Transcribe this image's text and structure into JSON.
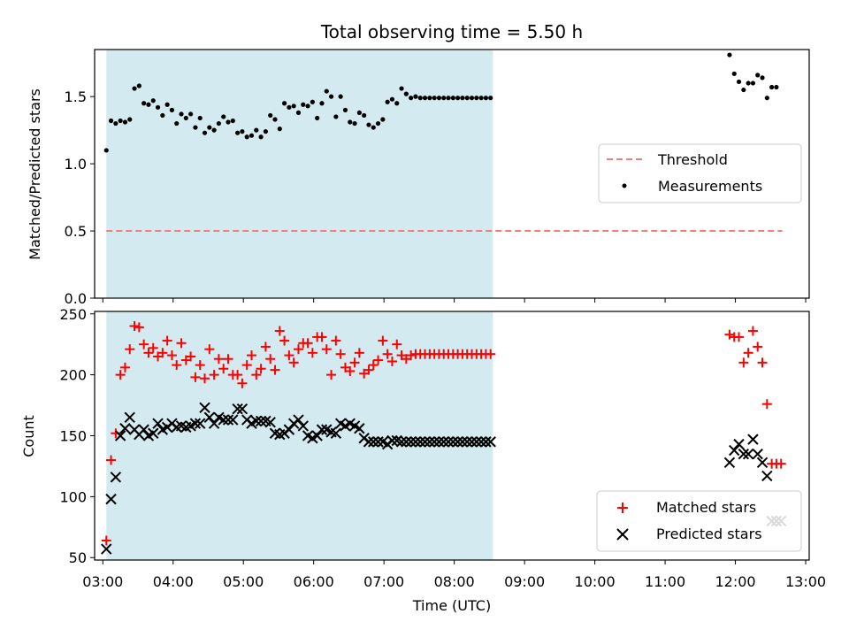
{
  "chart_data": [
    {
      "type": "scatter",
      "title": "Total observing time = 5.50 h",
      "ylabel": "Matched/Predicted stars",
      "xlabel": "",
      "xlim": [
        "02:53",
        "13:03"
      ],
      "ylim": [
        0,
        1.85
      ],
      "yticks": [
        "0.0",
        "0.5",
        "1.0",
        "1.5"
      ],
      "shaded_interval": [
        "03:03",
        "08:33"
      ],
      "shade_color": "#d4eaf1",
      "legend_position": "center-right",
      "series": [
        {
          "name": "Threshold",
          "style": "dashed-line",
          "color": "#f08080",
          "x": [
            "03:03",
            "12:40"
          ],
          "y": [
            0.5,
            0.5
          ]
        },
        {
          "name": "Measurements",
          "style": "dot",
          "color": "#000000",
          "x": [
            "03:03",
            "03:07",
            "03:11",
            "03:15",
            "03:19",
            "03:23",
            "03:27",
            "03:31",
            "03:35",
            "03:39",
            "03:43",
            "03:47",
            "03:51",
            "03:55",
            "03:59",
            "04:03",
            "04:07",
            "04:11",
            "04:15",
            "04:19",
            "04:23",
            "04:27",
            "04:31",
            "04:35",
            "04:39",
            "04:43",
            "04:47",
            "04:51",
            "04:55",
            "04:59",
            "05:03",
            "05:07",
            "05:11",
            "05:15",
            "05:19",
            "05:23",
            "05:27",
            "05:31",
            "05:35",
            "05:39",
            "05:43",
            "05:47",
            "05:51",
            "05:55",
            "05:59",
            "06:03",
            "06:07",
            "06:11",
            "06:15",
            "06:19",
            "06:23",
            "06:27",
            "06:31",
            "06:35",
            "06:39",
            "06:43",
            "06:47",
            "06:51",
            "06:55",
            "06:59",
            "07:03",
            "07:07",
            "07:11",
            "07:15",
            "07:19",
            "07:23",
            "07:27",
            "07:31",
            "07:35",
            "07:39",
            "07:43",
            "07:47",
            "07:51",
            "07:55",
            "07:59",
            "08:03",
            "08:07",
            "08:11",
            "08:15",
            "08:19",
            "08:23",
            "08:27",
            "08:31",
            "11:55",
            "11:59",
            "12:03",
            "12:07",
            "12:11",
            "12:15",
            "12:19",
            "12:23",
            "12:27",
            "12:31",
            "12:35"
          ],
          "y": [
            1.1,
            1.32,
            1.3,
            1.32,
            1.31,
            1.33,
            1.56,
            1.58,
            1.45,
            1.44,
            1.47,
            1.42,
            1.36,
            1.44,
            1.4,
            1.3,
            1.37,
            1.34,
            1.37,
            1.27,
            1.34,
            1.23,
            1.27,
            1.25,
            1.3,
            1.35,
            1.31,
            1.32,
            1.23,
            1.24,
            1.2,
            1.21,
            1.25,
            1.2,
            1.24,
            1.36,
            1.33,
            1.26,
            1.45,
            1.42,
            1.43,
            1.38,
            1.44,
            1.43,
            1.46,
            1.34,
            1.45,
            1.54,
            1.5,
            1.35,
            1.5,
            1.4,
            1.31,
            1.3,
            1.38,
            1.36,
            1.29,
            1.27,
            1.3,
            1.33,
            1.46,
            1.48,
            1.45,
            1.56,
            1.52,
            1.49,
            1.5,
            1.49,
            1.49,
            1.49,
            1.49,
            1.49,
            1.49,
            1.49,
            1.49,
            1.49,
            1.49,
            1.49,
            1.49,
            1.49,
            1.49,
            1.49,
            1.49,
            1.81,
            1.67,
            1.61,
            1.55,
            1.6,
            1.6,
            1.66,
            1.64,
            1.49,
            1.57,
            1.57
          ]
        }
      ]
    },
    {
      "type": "scatter",
      "title": "",
      "xlabel": "Time (UTC)",
      "ylabel": "Count",
      "xlim": [
        "02:53",
        "13:03"
      ],
      "ylim": [
        48,
        252
      ],
      "yticks": [
        "50",
        "100",
        "150",
        "200",
        "250"
      ],
      "xticks": [
        "03:00",
        "04:00",
        "05:00",
        "06:00",
        "07:00",
        "08:00",
        "09:00",
        "10:00",
        "11:00",
        "12:00",
        "13:00"
      ],
      "shaded_interval": [
        "03:03",
        "08:33"
      ],
      "shade_color": "#d4eaf1",
      "legend_position": "bottom-right",
      "series": [
        {
          "name": "Matched stars",
          "style": "plus",
          "color": "#ff0000",
          "x": [
            "03:03",
            "03:07",
            "03:11",
            "03:15",
            "03:19",
            "03:23",
            "03:27",
            "03:31",
            "03:35",
            "03:39",
            "03:43",
            "03:47",
            "03:51",
            "03:55",
            "03:59",
            "04:03",
            "04:07",
            "04:11",
            "04:15",
            "04:19",
            "04:23",
            "04:27",
            "04:31",
            "04:35",
            "04:39",
            "04:43",
            "04:47",
            "04:51",
            "04:55",
            "04:59",
            "05:03",
            "05:07",
            "05:11",
            "05:15",
            "05:19",
            "05:23",
            "05:27",
            "05:31",
            "05:35",
            "05:39",
            "05:43",
            "05:47",
            "05:51",
            "05:55",
            "05:59",
            "06:03",
            "06:07",
            "06:11",
            "06:15",
            "06:19",
            "06:23",
            "06:27",
            "06:31",
            "06:35",
            "06:39",
            "06:43",
            "06:47",
            "06:51",
            "06:55",
            "06:59",
            "07:03",
            "07:07",
            "07:11",
            "07:15",
            "07:19",
            "07:23",
            "07:27",
            "07:31",
            "07:35",
            "07:39",
            "07:43",
            "07:47",
            "07:51",
            "07:55",
            "07:59",
            "08:03",
            "08:07",
            "08:11",
            "08:15",
            "08:19",
            "08:23",
            "08:27",
            "08:31",
            "11:55",
            "11:59",
            "12:03",
            "12:07",
            "12:11",
            "12:15",
            "12:19",
            "12:23",
            "12:27",
            "12:31",
            "12:35",
            "12:39"
          ],
          "y": [
            64,
            130,
            152,
            200,
            206,
            221,
            240,
            239,
            225,
            218,
            222,
            215,
            218,
            228,
            216,
            208,
            226,
            212,
            215,
            198,
            208,
            197,
            221,
            200,
            213,
            205,
            213,
            200,
            200,
            193,
            208,
            216,
            200,
            205,
            223,
            213,
            204,
            236,
            228,
            216,
            210,
            221,
            226,
            226,
            218,
            231,
            231,
            221,
            200,
            228,
            217,
            206,
            203,
            210,
            218,
            201,
            204,
            208,
            212,
            228,
            217,
            211,
            225,
            216,
            213,
            216,
            217,
            217,
            217,
            217,
            217,
            217,
            217,
            217,
            217,
            217,
            217,
            217,
            217,
            217,
            217,
            217,
            217,
            233,
            231,
            231,
            210,
            218,
            236,
            223,
            210,
            176,
            127,
            127,
            127
          ]
        },
        {
          "name": "Predicted stars",
          "style": "x",
          "color": "#000000",
          "x": [
            "03:03",
            "03:07",
            "03:11",
            "03:15",
            "03:19",
            "03:23",
            "03:27",
            "03:31",
            "03:35",
            "03:39",
            "03:43",
            "03:47",
            "03:51",
            "03:55",
            "03:59",
            "04:03",
            "04:07",
            "04:11",
            "04:15",
            "04:19",
            "04:23",
            "04:27",
            "04:31",
            "04:35",
            "04:39",
            "04:43",
            "04:47",
            "04:51",
            "04:55",
            "04:59",
            "05:03",
            "05:07",
            "05:11",
            "05:15",
            "05:19",
            "05:23",
            "05:27",
            "05:31",
            "05:35",
            "05:39",
            "05:43",
            "05:47",
            "05:51",
            "05:55",
            "05:59",
            "06:03",
            "06:07",
            "06:11",
            "06:15",
            "06:19",
            "06:23",
            "06:27",
            "06:31",
            "06:35",
            "06:39",
            "06:43",
            "06:47",
            "06:51",
            "06:55",
            "06:59",
            "07:03",
            "07:07",
            "07:11",
            "07:15",
            "07:19",
            "07:23",
            "07:27",
            "07:31",
            "07:35",
            "07:39",
            "07:43",
            "07:47",
            "07:51",
            "07:55",
            "07:59",
            "08:03",
            "08:07",
            "08:11",
            "08:15",
            "08:19",
            "08:23",
            "08:27",
            "08:31",
            "11:55",
            "11:59",
            "12:03",
            "12:07",
            "12:11",
            "12:15",
            "12:19",
            "12:23",
            "12:27",
            "12:31",
            "12:35",
            "12:39"
          ],
          "y": [
            57,
            98,
            116,
            150,
            156,
            165,
            155,
            151,
            155,
            150,
            152,
            160,
            155,
            157,
            160,
            157,
            158,
            157,
            158,
            160,
            160,
            173,
            165,
            160,
            165,
            163,
            163,
            163,
            172,
            172,
            163,
            160,
            162,
            162,
            162,
            161,
            152,
            151,
            152,
            155,
            160,
            163,
            158,
            150,
            148,
            150,
            155,
            155,
            153,
            152,
            160,
            158,
            160,
            158,
            156,
            148,
            145,
            145,
            145,
            145,
            143,
            146,
            146,
            145,
            145,
            145,
            145,
            145,
            145,
            145,
            145,
            145,
            145,
            145,
            145,
            145,
            145,
            145,
            145,
            145,
            145,
            145,
            145,
            128,
            138,
            143,
            135,
            135,
            147,
            135,
            128,
            117,
            80,
            80,
            80
          ]
        }
      ]
    }
  ]
}
